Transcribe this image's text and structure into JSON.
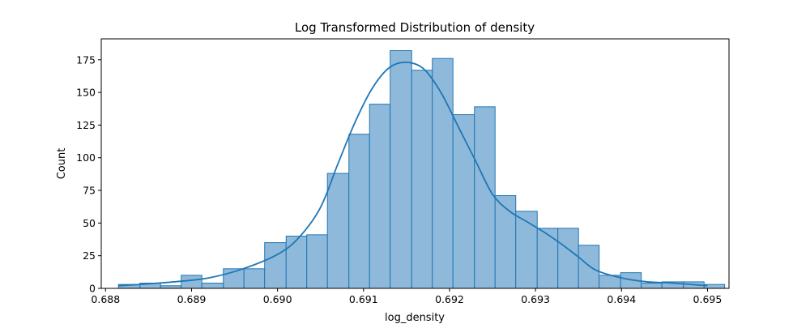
{
  "chart_data": {
    "type": "histogram",
    "title": "Log Transformed Distribution of density",
    "xlabel": "log_density",
    "ylabel": "Count",
    "xlim": [
      0.68795,
      0.69525
    ],
    "ylim": [
      0,
      191
    ],
    "xticks": [
      0.688,
      0.689,
      0.69,
      0.691,
      0.692,
      0.693,
      0.694,
      0.695
    ],
    "xtick_labels": [
      "0.688",
      "0.689",
      "0.690",
      "0.691",
      "0.692",
      "0.693",
      "0.694",
      "0.695"
    ],
    "yticks": [
      0,
      25,
      50,
      75,
      100,
      125,
      150,
      175
    ],
    "ytick_labels": [
      "0",
      "25",
      "50",
      "75",
      "100",
      "125",
      "150",
      "175"
    ],
    "grid": false,
    "bar_color": "#8fb9da",
    "edge_color": "#1f77b4",
    "bins": [
      {
        "start": 0.68815,
        "end": 0.6884,
        "count": 3
      },
      {
        "start": 0.6884,
        "end": 0.68864,
        "count": 4
      },
      {
        "start": 0.68864,
        "end": 0.68888,
        "count": 2
      },
      {
        "start": 0.68888,
        "end": 0.68912,
        "count": 10
      },
      {
        "start": 0.68912,
        "end": 0.68937,
        "count": 4
      },
      {
        "start": 0.68937,
        "end": 0.68961,
        "count": 15
      },
      {
        "start": 0.68961,
        "end": 0.68985,
        "count": 15
      },
      {
        "start": 0.68985,
        "end": 0.6901,
        "count": 35
      },
      {
        "start": 0.6901,
        "end": 0.69034,
        "count": 40
      },
      {
        "start": 0.69034,
        "end": 0.69058,
        "count": 41
      },
      {
        "start": 0.69058,
        "end": 0.69083,
        "count": 88
      },
      {
        "start": 0.69083,
        "end": 0.69107,
        "count": 118
      },
      {
        "start": 0.69107,
        "end": 0.69131,
        "count": 141
      },
      {
        "start": 0.69131,
        "end": 0.69156,
        "count": 182
      },
      {
        "start": 0.69156,
        "end": 0.6918,
        "count": 167
      },
      {
        "start": 0.6918,
        "end": 0.69204,
        "count": 176
      },
      {
        "start": 0.69204,
        "end": 0.69229,
        "count": 133
      },
      {
        "start": 0.69229,
        "end": 0.69253,
        "count": 139
      },
      {
        "start": 0.69253,
        "end": 0.69277,
        "count": 71
      },
      {
        "start": 0.69277,
        "end": 0.69302,
        "count": 59
      },
      {
        "start": 0.69302,
        "end": 0.69326,
        "count": 46
      },
      {
        "start": 0.69326,
        "end": 0.6935,
        "count": 46
      },
      {
        "start": 0.6935,
        "end": 0.69374,
        "count": 33
      },
      {
        "start": 0.69374,
        "end": 0.69399,
        "count": 10
      },
      {
        "start": 0.69399,
        "end": 0.69423,
        "count": 12
      },
      {
        "start": 0.69423,
        "end": 0.69447,
        "count": 4
      },
      {
        "start": 0.69447,
        "end": 0.69472,
        "count": 5
      },
      {
        "start": 0.69472,
        "end": 0.69496,
        "count": 5
      },
      {
        "start": 0.69496,
        "end": 0.6952,
        "count": 3
      }
    ],
    "kde": {
      "x": [
        0.68815,
        0.6884,
        0.6888,
        0.6892,
        0.6896,
        0.69,
        0.69025,
        0.6905,
        0.6907,
        0.6909,
        0.6911,
        0.6913,
        0.6915,
        0.6917,
        0.6919,
        0.6921,
        0.6923,
        0.6925,
        0.6927,
        0.6929,
        0.6931,
        0.6933,
        0.6935,
        0.6937,
        0.694,
        0.6943,
        0.6946,
        0.695
      ],
      "y": [
        2,
        3,
        5,
        8,
        15,
        26,
        39,
        62,
        95,
        127,
        153,
        169,
        173,
        168,
        150,
        124,
        98,
        72,
        59,
        51,
        43,
        34,
        24,
        14,
        8,
        5,
        4,
        2
      ]
    }
  }
}
